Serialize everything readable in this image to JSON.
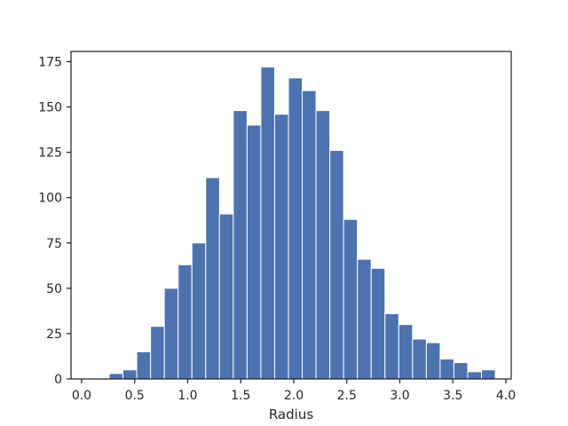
{
  "chart_data": {
    "type": "bar",
    "subtype": "histogram",
    "title": "",
    "xlabel": "Radius",
    "ylabel": "",
    "xlim": [
      -0.1,
      4.05
    ],
    "ylim": [
      0,
      180.6
    ],
    "xticks": [
      0.0,
      0.5,
      1.0,
      1.5,
      2.0,
      2.5,
      3.0,
      3.5,
      4.0
    ],
    "xtick_labels": [
      "0.0",
      "0.5",
      "1.0",
      "1.5",
      "2.0",
      "2.5",
      "3.0",
      "3.5",
      "4.0"
    ],
    "yticks": [
      0,
      25,
      50,
      75,
      100,
      125,
      150,
      175
    ],
    "ytick_labels": [
      "0",
      "25",
      "50",
      "75",
      "100",
      "125",
      "150",
      "175"
    ],
    "grid": false,
    "legend": "none",
    "bar_color": "#4c72b0",
    "bins": [
      {
        "x0": 0.0,
        "x1": 0.13,
        "count": 0
      },
      {
        "x0": 0.13,
        "x1": 0.26,
        "count": 0
      },
      {
        "x0": 0.26,
        "x1": 0.39,
        "count": 3
      },
      {
        "x0": 0.39,
        "x1": 0.52,
        "count": 5
      },
      {
        "x0": 0.52,
        "x1": 0.65,
        "count": 15
      },
      {
        "x0": 0.65,
        "x1": 0.78,
        "count": 29
      },
      {
        "x0": 0.78,
        "x1": 0.91,
        "count": 50
      },
      {
        "x0": 0.91,
        "x1": 1.04,
        "count": 63
      },
      {
        "x0": 1.04,
        "x1": 1.17,
        "count": 75
      },
      {
        "x0": 1.17,
        "x1": 1.3,
        "count": 111
      },
      {
        "x0": 1.3,
        "x1": 1.43,
        "count": 91
      },
      {
        "x0": 1.43,
        "x1": 1.56,
        "count": 148
      },
      {
        "x0": 1.56,
        "x1": 1.69,
        "count": 140
      },
      {
        "x0": 1.69,
        "x1": 1.82,
        "count": 172
      },
      {
        "x0": 1.82,
        "x1": 1.95,
        "count": 146
      },
      {
        "x0": 1.95,
        "x1": 2.08,
        "count": 166
      },
      {
        "x0": 2.08,
        "x1": 2.21,
        "count": 159
      },
      {
        "x0": 2.21,
        "x1": 2.34,
        "count": 148
      },
      {
        "x0": 2.34,
        "x1": 2.47,
        "count": 126
      },
      {
        "x0": 2.47,
        "x1": 2.6,
        "count": 88
      },
      {
        "x0": 2.6,
        "x1": 2.73,
        "count": 66
      },
      {
        "x0": 2.73,
        "x1": 2.86,
        "count": 61
      },
      {
        "x0": 2.86,
        "x1": 2.99,
        "count": 36
      },
      {
        "x0": 2.99,
        "x1": 3.12,
        "count": 30
      },
      {
        "x0": 3.12,
        "x1": 3.25,
        "count": 22
      },
      {
        "x0": 3.25,
        "x1": 3.38,
        "count": 20
      },
      {
        "x0": 3.38,
        "x1": 3.51,
        "count": 11
      },
      {
        "x0": 3.51,
        "x1": 3.64,
        "count": 9
      },
      {
        "x0": 3.64,
        "x1": 3.77,
        "count": 4
      },
      {
        "x0": 3.77,
        "x1": 3.9,
        "count": 5
      }
    ]
  }
}
